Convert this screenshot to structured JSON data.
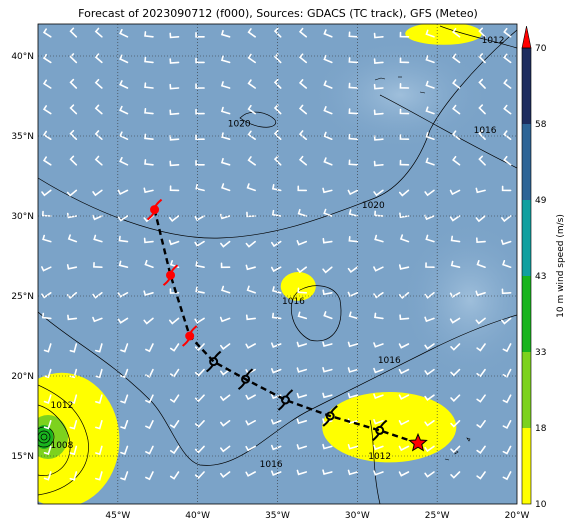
{
  "title": "Forecast of 2023090712 (f000), Sources: GDACS (TC track), GFS (Meteo)",
  "map": {
    "lon_range": [
      -50,
      -20
    ],
    "lat_range": [
      12,
      42
    ],
    "x_ticks": [
      "45°W",
      "40°W",
      "35°W",
      "30°W",
      "25°W",
      "20°W"
    ],
    "y_ticks": [
      "40°N",
      "35°N",
      "30°N",
      "25°N",
      "20°N",
      "15°N"
    ],
    "ocean_color": "#7ba3c8",
    "grid_style": "dotted"
  },
  "isobars": {
    "labels": [
      {
        "text": "1020",
        "lon": -37.4,
        "lat": 35.6
      },
      {
        "text": "1020",
        "lon": -29.0,
        "lat": 30.5
      },
      {
        "text": "1016",
        "lon": -22.0,
        "lat": 35.2
      },
      {
        "text": "1016",
        "lon": -34.0,
        "lat": 24.5
      },
      {
        "text": "1016",
        "lon": -28.0,
        "lat": 20.8
      },
      {
        "text": "1016",
        "lon": -35.4,
        "lat": 14.3
      },
      {
        "text": "1012",
        "lon": -21.5,
        "lat": 40.8
      },
      {
        "text": "1012",
        "lon": -48.5,
        "lat": 18.0
      },
      {
        "text": "1008",
        "lon": -48.5,
        "lat": 15.5
      },
      {
        "text": "1012",
        "lon": -28.6,
        "lat": 14.8
      }
    ]
  },
  "wind_shading": [
    {
      "name": "west-storm",
      "lon": -48.5,
      "lat": 16.0,
      "rx": 3.6,
      "ry": 4.2,
      "color": "#ffff00"
    },
    {
      "name": "east-patch",
      "lon": -28.0,
      "lat": 16.8,
      "rx": 4.2,
      "ry": 2.2,
      "color": "#ffff00"
    },
    {
      "name": "small-patch",
      "lon": -33.7,
      "lat": 25.6,
      "rx": 1.1,
      "ry": 0.9,
      "color": "#ffff00"
    },
    {
      "name": "north-patch",
      "lon": -24.6,
      "lat": 41.4,
      "rx": 2.4,
      "ry": 0.7,
      "color": "#ffff00"
    }
  ],
  "track": {
    "points": [
      {
        "lon": -42.7,
        "lat": 30.4,
        "type": "hurricane",
        "color": "#ff0000"
      },
      {
        "lon": -41.7,
        "lat": 26.3,
        "type": "hurricane",
        "color": "#ff0000"
      },
      {
        "lon": -40.5,
        "lat": 22.5,
        "type": "hurricane",
        "color": "#ff0000"
      },
      {
        "lon": -39.0,
        "lat": 20.9,
        "type": "storm",
        "color": "#000000"
      },
      {
        "lon": -37.0,
        "lat": 19.8,
        "type": "storm",
        "color": "#000000"
      },
      {
        "lon": -34.5,
        "lat": 18.5,
        "type": "storm",
        "color": "#000000"
      },
      {
        "lon": -31.7,
        "lat": 17.5,
        "type": "storm",
        "color": "#000000"
      },
      {
        "lon": -28.6,
        "lat": 16.6,
        "type": "storm",
        "color": "#000000"
      }
    ],
    "current": {
      "lon": -26.2,
      "lat": 15.8,
      "color": "#ff0000"
    }
  },
  "colorbar": {
    "label": "10 m wind speed (m/s)",
    "ticks": [
      "10",
      "18",
      "33",
      "43",
      "49",
      "58",
      "70"
    ],
    "colors": [
      "#ffff00",
      "#7dd21e",
      "#19b41e",
      "#11a0a0",
      "#2d6496",
      "#1e2d5f"
    ],
    "extend_color": "#ff0000"
  }
}
